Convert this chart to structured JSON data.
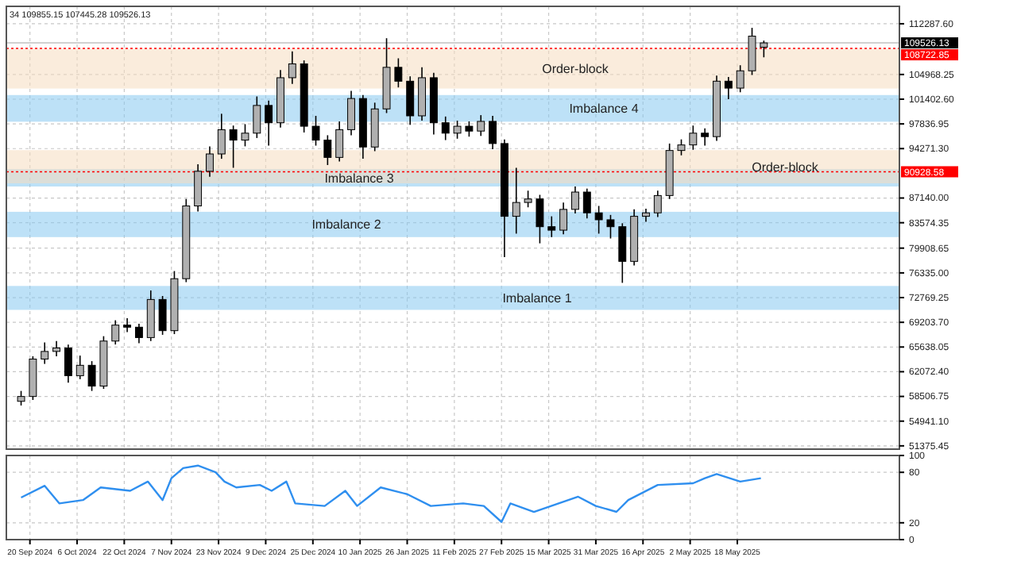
{
  "chart_data": [
    {
      "type": "candlestick",
      "annotations": [
        "34 109855.15 107445.28 109526.13"
      ],
      "x": [
        "2024-09-17",
        "2024-09-21",
        "2024-09-25",
        "2024-09-29",
        "2024-10-03",
        "2024-10-07",
        "2024-10-11",
        "2024-10-15",
        "2024-10-19",
        "2024-10-23",
        "2024-10-27",
        "2024-10-31",
        "2024-11-04",
        "2024-11-08",
        "2024-11-12",
        "2024-11-16",
        "2024-11-20",
        "2024-11-24",
        "2024-11-28",
        "2024-12-02",
        "2024-12-06",
        "2024-12-10",
        "2024-12-14",
        "2024-12-18",
        "2024-12-22",
        "2024-12-26",
        "2024-12-30",
        "2025-01-03",
        "2025-01-07",
        "2025-01-11",
        "2025-01-15",
        "2025-01-19",
        "2025-01-23",
        "2025-01-27",
        "2025-01-31",
        "2025-02-04",
        "2025-02-08",
        "2025-02-12",
        "2025-02-16",
        "2025-02-20",
        "2025-02-24",
        "2025-02-28",
        "2025-03-04",
        "2025-03-08",
        "2025-03-12",
        "2025-03-16",
        "2025-03-20",
        "2025-03-24",
        "2025-03-28",
        "2025-04-01",
        "2025-04-05",
        "2025-04-09",
        "2025-04-13",
        "2025-04-17",
        "2025-04-21",
        "2025-04-25",
        "2025-04-29",
        "2025-05-03",
        "2025-05-07",
        "2025-05-11",
        "2025-05-15",
        "2025-05-19",
        "2025-05-23",
        "2025-05-27"
      ],
      "ohlc": [
        [
          57800,
          59300,
          57200,
          58500
        ],
        [
          58500,
          64300,
          58000,
          63900
        ],
        [
          63900,
          66300,
          63200,
          65000
        ],
        [
          65000,
          66500,
          64300,
          65500
        ],
        [
          65500,
          66000,
          60500,
          61500
        ],
        [
          61500,
          64400,
          61000,
          63000
        ],
        [
          63000,
          63600,
          59300,
          60000
        ],
        [
          60000,
          67200,
          59600,
          66500
        ],
        [
          66500,
          69500,
          66000,
          68800
        ],
        [
          68800,
          69800,
          67800,
          68500
        ],
        [
          68500,
          69000,
          66200,
          67000
        ],
        [
          67000,
          73800,
          66500,
          72500
        ],
        [
          72500,
          73000,
          67400,
          68000
        ],
        [
          68000,
          76600,
          67500,
          75500
        ],
        [
          75500,
          87000,
          75000,
          86000
        ],
        [
          86000,
          92000,
          85200,
          91000
        ],
        [
          91000,
          94600,
          90200,
          93500
        ],
        [
          93500,
          99300,
          92800,
          97000
        ],
        [
          97000,
          97600,
          91500,
          95500
        ],
        [
          95500,
          97800,
          94600,
          96500
        ],
        [
          96500,
          101800,
          95800,
          100500
        ],
        [
          100500,
          101200,
          94700,
          98000
        ],
        [
          98000,
          105600,
          97300,
          104500
        ],
        [
          104500,
          108300,
          103600,
          106500
        ],
        [
          106500,
          107000,
          96600,
          97500
        ],
        [
          97500,
          99000,
          94700,
          95500
        ],
        [
          95500,
          96200,
          91900,
          93000
        ],
        [
          93000,
          98200,
          92400,
          97000
        ],
        [
          97000,
          102600,
          96200,
          101500
        ],
        [
          101500,
          102000,
          92800,
          94500
        ],
        [
          94500,
          100900,
          93900,
          100000
        ],
        [
          100000,
          110200,
          99400,
          106000
        ],
        [
          106000,
          107300,
          103100,
          104000
        ],
        [
          104000,
          104700,
          97700,
          99000
        ],
        [
          99000,
          106000,
          98300,
          104500
        ],
        [
          104500,
          105200,
          96300,
          98000
        ],
        [
          98000,
          98900,
          95500,
          96500
        ],
        [
          96500,
          98300,
          95700,
          97500
        ],
        [
          97500,
          98200,
          96000,
          96800
        ],
        [
          96800,
          99100,
          96100,
          98200
        ],
        [
          98200,
          99000,
          94200,
          95000
        ],
        [
          95000,
          95600,
          78600,
          84500
        ],
        [
          84500,
          91500,
          82000,
          86500
        ],
        [
          86500,
          88200,
          85800,
          87000
        ],
        [
          87000,
          87600,
          80600,
          83000
        ],
        [
          83000,
          84500,
          81500,
          82500
        ],
        [
          82500,
          86500,
          81900,
          85500
        ],
        [
          85500,
          88800,
          84900,
          88000
        ],
        [
          88000,
          88500,
          84200,
          85000
        ],
        [
          85000,
          86000,
          82000,
          84000
        ],
        [
          84000,
          84700,
          81300,
          83000
        ],
        [
          83000,
          83500,
          74900,
          78000
        ],
        [
          78000,
          85500,
          77400,
          84500
        ],
        [
          84500,
          85600,
          83700,
          85000
        ],
        [
          85000,
          88200,
          84400,
          87500
        ],
        [
          87500,
          95000,
          87000,
          94000
        ],
        [
          94000,
          95600,
          93300,
          94800
        ],
        [
          94800,
          97600,
          94100,
          96500
        ],
        [
          96500,
          97200,
          94700,
          96000
        ],
        [
          96000,
          104800,
          95400,
          104000
        ],
        [
          104000,
          104600,
          101400,
          103000
        ],
        [
          103000,
          106300,
          102400,
          105500
        ],
        [
          105500,
          111700,
          104900,
          110500
        ],
        [
          108900,
          109855.15,
          107445.28,
          109526.13
        ]
      ],
      "xlim": [
        "2024-09-12",
        "2025-07-12"
      ],
      "xticks": [
        {
          "value": "2024-09-20",
          "label": null
        },
        {
          "value": "2024-10-06",
          "label": null
        },
        {
          "value": "2024-10-22",
          "label": null
        },
        {
          "value": "2024-11-07",
          "label": null
        },
        {
          "value": "2024-11-23",
          "label": null
        },
        {
          "value": "2024-12-09",
          "label": null
        },
        {
          "value": "2024-12-25",
          "label": null
        },
        {
          "value": "2025-01-10",
          "label": null
        },
        {
          "value": "2025-01-26",
          "label": null
        },
        {
          "value": "2025-02-11",
          "label": null
        },
        {
          "value": "2025-02-27",
          "label": null
        },
        {
          "value": "2025-03-15",
          "label": null
        },
        {
          "value": "2025-03-31",
          "label": null
        },
        {
          "value": "2025-04-16",
          "label": null
        },
        {
          "value": "2025-05-02",
          "label": null
        },
        {
          "value": "2025-05-18",
          "label": null
        }
      ],
      "ylim": [
        50900,
        114800
      ],
      "yticks": [
        {
          "value": 112287.6,
          "label": "112287.60"
        },
        {
          "value": 104968.25,
          "label": "104968.25"
        },
        {
          "value": 101402.6,
          "label": "101402.60"
        },
        {
          "value": 97836.95,
          "label": "97836.95"
        },
        {
          "value": 94271.3,
          "label": "94271.30"
        },
        {
          "value": 87140,
          "label": "87140.00"
        },
        {
          "value": 83574.35,
          "label": "83574.35"
        },
        {
          "value": 79908.65,
          "label": "79908.65"
        },
        {
          "value": 76335,
          "label": "76335.00"
        },
        {
          "value": 72769.25,
          "label": "72769.25"
        },
        {
          "value": 69203.7,
          "label": "69203.70"
        },
        {
          "value": 65638.05,
          "label": "65638.05"
        },
        {
          "value": 62072.4,
          "label": "62072.40"
        },
        {
          "value": 58506.75,
          "label": "58506.75"
        },
        {
          "value": 54941.1,
          "label": "54941.10"
        },
        {
          "value": 51375.45,
          "label": "51375.45"
        }
      ],
      "grid": true,
      "tick_labels": "y",
      "ref_lines": [
        {
          "axis": "y",
          "value": 109526.13,
          "label": "109526.13",
          "color": "#c0c0c0",
          "line_style": "solid"
        },
        {
          "axis": "y",
          "value": 108722.85,
          "label": "108722.85",
          "color": "#ff0000",
          "line_style": "dotted"
        },
        {
          "axis": "y",
          "value": 90928.58,
          "label": "90928.58",
          "color": "#ff0000",
          "line_style": "dotted"
        }
      ],
      "bands": [
        {
          "axis": "y",
          "from": 102940,
          "to": 108640,
          "label": "Order-block",
          "color": "#f5dcc0"
        },
        {
          "axis": "y",
          "from": 71000,
          "to": 74450,
          "label": "Imbalance 1",
          "color": "#87c8f0"
        },
        {
          "axis": "y",
          "from": 81500,
          "to": 85150,
          "label": "Imbalance 2",
          "color": "#87c8f0"
        },
        {
          "axis": "y",
          "from": 88800,
          "to": 91300,
          "label": "Imbalance 3",
          "color": "#87c8f0"
        },
        {
          "axis": "y",
          "from": 98150,
          "to": 102000,
          "label": "Imbalance 4",
          "color": "#87c8f0"
        },
        {
          "axis": "y",
          "from": 89260,
          "to": 94050,
          "label": "Order-block",
          "color": "#f5dcc0"
        }
      ]
    },
    {
      "type": "line",
      "x": [
        "2024-09-17",
        "2024-09-25",
        "2024-09-30",
        "2024-10-08",
        "2024-10-14",
        "2024-10-24",
        "2024-10-30",
        "2024-11-04",
        "2024-11-07",
        "2024-11-11",
        "2024-11-16",
        "2024-11-22",
        "2024-11-25",
        "2024-11-29",
        "2024-12-07",
        "2024-12-11",
        "2024-12-16",
        "2024-12-19",
        "2024-12-29",
        "2025-01-05",
        "2025-01-09",
        "2025-01-17",
        "2025-01-26",
        "2025-02-03",
        "2025-02-14",
        "2025-02-21",
        "2025-02-27",
        "2025-03-02",
        "2025-03-10",
        "2025-03-25",
        "2025-03-31",
        "2025-04-07",
        "2025-04-11",
        "2025-04-21",
        "2025-05-03",
        "2025-05-07",
        "2025-05-11",
        "2025-05-19",
        "2025-05-26"
      ],
      "series": [
        {
          "color": "#2f8fef",
          "values": [
            50,
            64,
            43,
            47,
            62,
            58,
            69,
            47,
            73,
            85,
            88,
            80,
            69,
            62,
            65,
            58,
            69,
            43,
            40,
            58,
            40,
            62,
            54,
            40,
            43,
            40,
            21,
            43,
            33,
            51,
            40,
            33,
            47,
            65,
            67,
            73,
            78,
            69,
            73
          ]
        }
      ],
      "xlim": [
        "2024-09-12",
        "2025-07-12"
      ],
      "xticks": [
        {
          "value": "2024-09-20",
          "label": "20 Sep 2024"
        },
        {
          "value": "2024-10-06",
          "label": "6 Oct 2024"
        },
        {
          "value": "2024-10-22",
          "label": "22 Oct 2024"
        },
        {
          "value": "2024-11-07",
          "label": "7 Nov 2024"
        },
        {
          "value": "2024-11-23",
          "label": "23 Nov 2024"
        },
        {
          "value": "2024-12-09",
          "label": "9 Dec 2024"
        },
        {
          "value": "2024-12-25",
          "label": "25 Dec 2024"
        },
        {
          "value": "2025-01-10",
          "label": "10 Jan 2025"
        },
        {
          "value": "2025-01-26",
          "label": "26 Jan 2025"
        },
        {
          "value": "2025-02-11",
          "label": "11 Feb 2025"
        },
        {
          "value": "2025-02-27",
          "label": "27 Feb 2025"
        },
        {
          "value": "2025-03-15",
          "label": "15 Mar 2025"
        },
        {
          "value": "2025-03-31",
          "label": "31 Mar 2025"
        },
        {
          "value": "2025-04-16",
          "label": "16 Apr 2025"
        },
        {
          "value": "2025-05-02",
          "label": "2 May 2025"
        },
        {
          "value": "2025-05-18",
          "label": "18 May 2025"
        }
      ],
      "ylim": [
        0,
        100
      ],
      "yticks": [
        100,
        80,
        20,
        0
      ],
      "grid": true
    }
  ]
}
